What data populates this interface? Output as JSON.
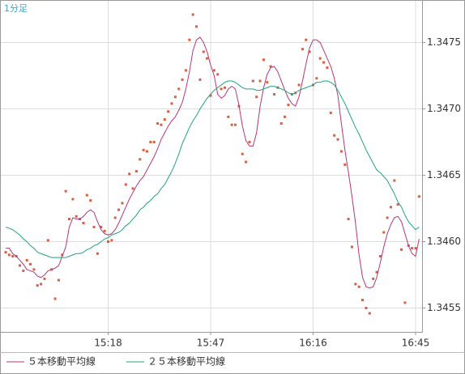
{
  "chart_data": {
    "type": "line",
    "title": "1分足",
    "categories": [
      null,
      null,
      null,
      null,
      null,
      null,
      null,
      null,
      null,
      null,
      null,
      null,
      null,
      null,
      null,
      null,
      null,
      null,
      null,
      null,
      null,
      null,
      null,
      null,
      null,
      null,
      null,
      null,
      null,
      "15:18",
      null,
      null,
      null,
      null,
      null,
      null,
      null,
      null,
      null,
      null,
      null,
      null,
      null,
      null,
      null,
      null,
      null,
      null,
      null,
      null,
      null,
      null,
      null,
      null,
      null,
      null,
      null,
      null,
      "15:47",
      null,
      null,
      null,
      null,
      null,
      null,
      null,
      null,
      null,
      null,
      null,
      null,
      null,
      null,
      null,
      null,
      null,
      null,
      null,
      null,
      null,
      null,
      null,
      null,
      null,
      null,
      null,
      null,
      "16:16",
      null,
      null,
      null,
      null,
      null,
      null,
      null,
      null,
      null,
      null,
      null,
      null,
      null,
      null,
      null,
      null,
      null,
      null,
      null,
      null,
      null,
      null,
      null,
      null,
      null,
      null,
      null,
      null,
      "16:45",
      null
    ],
    "ylim": [
      1.34532,
      1.34782
    ],
    "yticks": [
      1.3455,
      {
        "value": 1.346,
        "label": "1.3460"
      },
      1.3465,
      {
        "value": 1.347,
        "label": "1.3470"
      },
      1.3475
    ],
    "grid": true,
    "series": [
      {
        "color": "#d9603f",
        "marker": "square",
        "values": [
          1.34592,
          1.3459,
          1.34589,
          1.34589,
          1.34582,
          1.34578,
          1.34586,
          1.34583,
          1.34579,
          1.34567,
          1.34568,
          1.34572,
          1.34601,
          1.34579,
          1.34557,
          1.34571,
          1.3459,
          1.34638,
          1.34617,
          1.34632,
          1.34619,
          1.34617,
          1.34614,
          1.34635,
          1.34631,
          1.34611,
          1.34591,
          1.34611,
          1.34608,
          1.346,
          1.34601,
          1.34618,
          1.34624,
          1.34629,
          1.34643,
          1.34651,
          1.3464,
          1.34653,
          1.34662,
          1.34669,
          1.34668,
          1.34675,
          1.34675,
          1.34689,
          1.34688,
          1.34692,
          1.34698,
          1.34704,
          1.34709,
          1.34715,
          1.34722,
          1.34729,
          1.34752,
          1.34771,
          1.34762,
          1.34722,
          1.34743,
          1.34738,
          1.3471,
          1.34729,
          1.34726,
          1.34715,
          1.34716,
          1.34694,
          1.34688,
          1.34688,
          1.34702,
          1.34666,
          1.3466,
          1.34675,
          1.34721,
          1.34709,
          1.34721,
          1.34737,
          1.3472,
          1.34732,
          1.34711,
          1.34716,
          1.34689,
          1.34694,
          1.34703,
          1.34711,
          1.34712,
          1.34718,
          1.34745,
          1.34752,
          1.34743,
          1.34718,
          1.34723,
          1.34738,
          1.34735,
          1.34731,
          1.34697,
          1.3468,
          1.34677,
          1.34668,
          1.34658,
          1.34617,
          1.34596,
          1.34568,
          1.34566,
          1.34556,
          1.3455,
          1.34546,
          1.34572,
          1.34577,
          1.34589,
          1.34607,
          1.34618,
          1.34626,
          1.34646,
          1.34628,
          1.34594,
          1.34554,
          1.34597,
          1.34595,
          1.34595,
          1.34634
        ]
      },
      {
        "name": "５本移動平均線",
        "color": "#b8357a",
        "values": [
          1.34595,
          1.34595,
          1.34591,
          1.34589,
          1.34586,
          1.34583,
          1.34579,
          1.34578,
          1.34577,
          1.34574,
          1.34573,
          1.34575,
          1.34578,
          1.34579,
          1.3458,
          1.34582,
          1.34589,
          1.34596,
          1.34611,
          1.34618,
          1.34617,
          1.34617,
          1.34619,
          1.34622,
          1.34624,
          1.34622,
          1.34615,
          1.34609,
          1.34606,
          1.34605,
          1.34606,
          1.34609,
          1.34614,
          1.3462,
          1.34626,
          1.34632,
          1.34637,
          1.34642,
          1.34646,
          1.34649,
          1.34654,
          1.34659,
          1.34664,
          1.3467,
          1.34677,
          1.34682,
          1.34687,
          1.34691,
          1.34694,
          1.34699,
          1.34705,
          1.34715,
          1.34728,
          1.34744,
          1.34752,
          1.34754,
          1.3475,
          1.34743,
          1.34733,
          1.34725,
          1.34711,
          1.34708,
          1.3471,
          1.34715,
          1.34717,
          1.34715,
          1.34703,
          1.34687,
          1.34676,
          1.34672,
          1.34672,
          1.34682,
          1.34702,
          1.34716,
          1.34726,
          1.34731,
          1.34732,
          1.34728,
          1.34721,
          1.34714,
          1.34708,
          1.34704,
          1.34702,
          1.34709,
          1.34721,
          1.34734,
          1.34746,
          1.34752,
          1.34752,
          1.3475,
          1.34744,
          1.34738,
          1.34732,
          1.34723,
          1.3471,
          1.34689,
          1.34669,
          1.34652,
          1.34634,
          1.34614,
          1.3459,
          1.34573,
          1.34566,
          1.34565,
          1.34566,
          1.34573,
          1.34584,
          1.34596,
          1.34606,
          1.34613,
          1.34618,
          1.34619,
          1.34615,
          1.34606,
          1.34597,
          1.34591,
          1.34589,
          1.34602
        ]
      },
      {
        "name": "２５本移動平均線",
        "color": "#1fa57e",
        "values": [
          1.34611,
          1.3461,
          1.34609,
          1.34607,
          1.34605,
          1.34602,
          1.346,
          1.34597,
          1.34595,
          1.34592,
          1.34591,
          1.3459,
          1.34589,
          1.34588,
          1.34588,
          1.34588,
          1.34588,
          1.34588,
          1.34589,
          1.3459,
          1.34591,
          1.34591,
          1.34592,
          1.34594,
          1.34595,
          1.34597,
          1.34598,
          1.346,
          1.34602,
          1.34603,
          1.34605,
          1.34606,
          1.34607,
          1.34609,
          1.34612,
          1.34614,
          1.34617,
          1.3462,
          1.34624,
          1.34626,
          1.34629,
          1.34631,
          1.34634,
          1.34636,
          1.3464,
          1.34643,
          1.34648,
          1.34653,
          1.34659,
          1.34666,
          1.34674,
          1.3468,
          1.34686,
          1.34691,
          1.34695,
          1.347,
          1.34704,
          1.34708,
          1.34711,
          1.34714,
          1.34716,
          1.34718,
          1.3472,
          1.34721,
          1.34721,
          1.3472,
          1.34718,
          1.34716,
          1.34715,
          1.34715,
          1.34715,
          1.34714,
          1.34714,
          1.34715,
          1.34716,
          1.34717,
          1.34717,
          1.34716,
          1.34715,
          1.34714,
          1.34712,
          1.34711,
          1.34712,
          1.34714,
          1.34715,
          1.34716,
          1.34717,
          1.34718,
          1.3472,
          1.3472,
          1.34721,
          1.34721,
          1.3472,
          1.34718,
          1.34714,
          1.34709,
          1.34704,
          1.34698,
          1.34692,
          1.34686,
          1.34681,
          1.34675,
          1.34669,
          1.34664,
          1.34659,
          1.34654,
          1.34652,
          1.34649,
          1.34646,
          1.34641,
          1.34636,
          1.3463,
          1.34626,
          1.3462,
          1.34615,
          1.34612,
          1.34609,
          1.34611
        ]
      }
    ]
  }
}
